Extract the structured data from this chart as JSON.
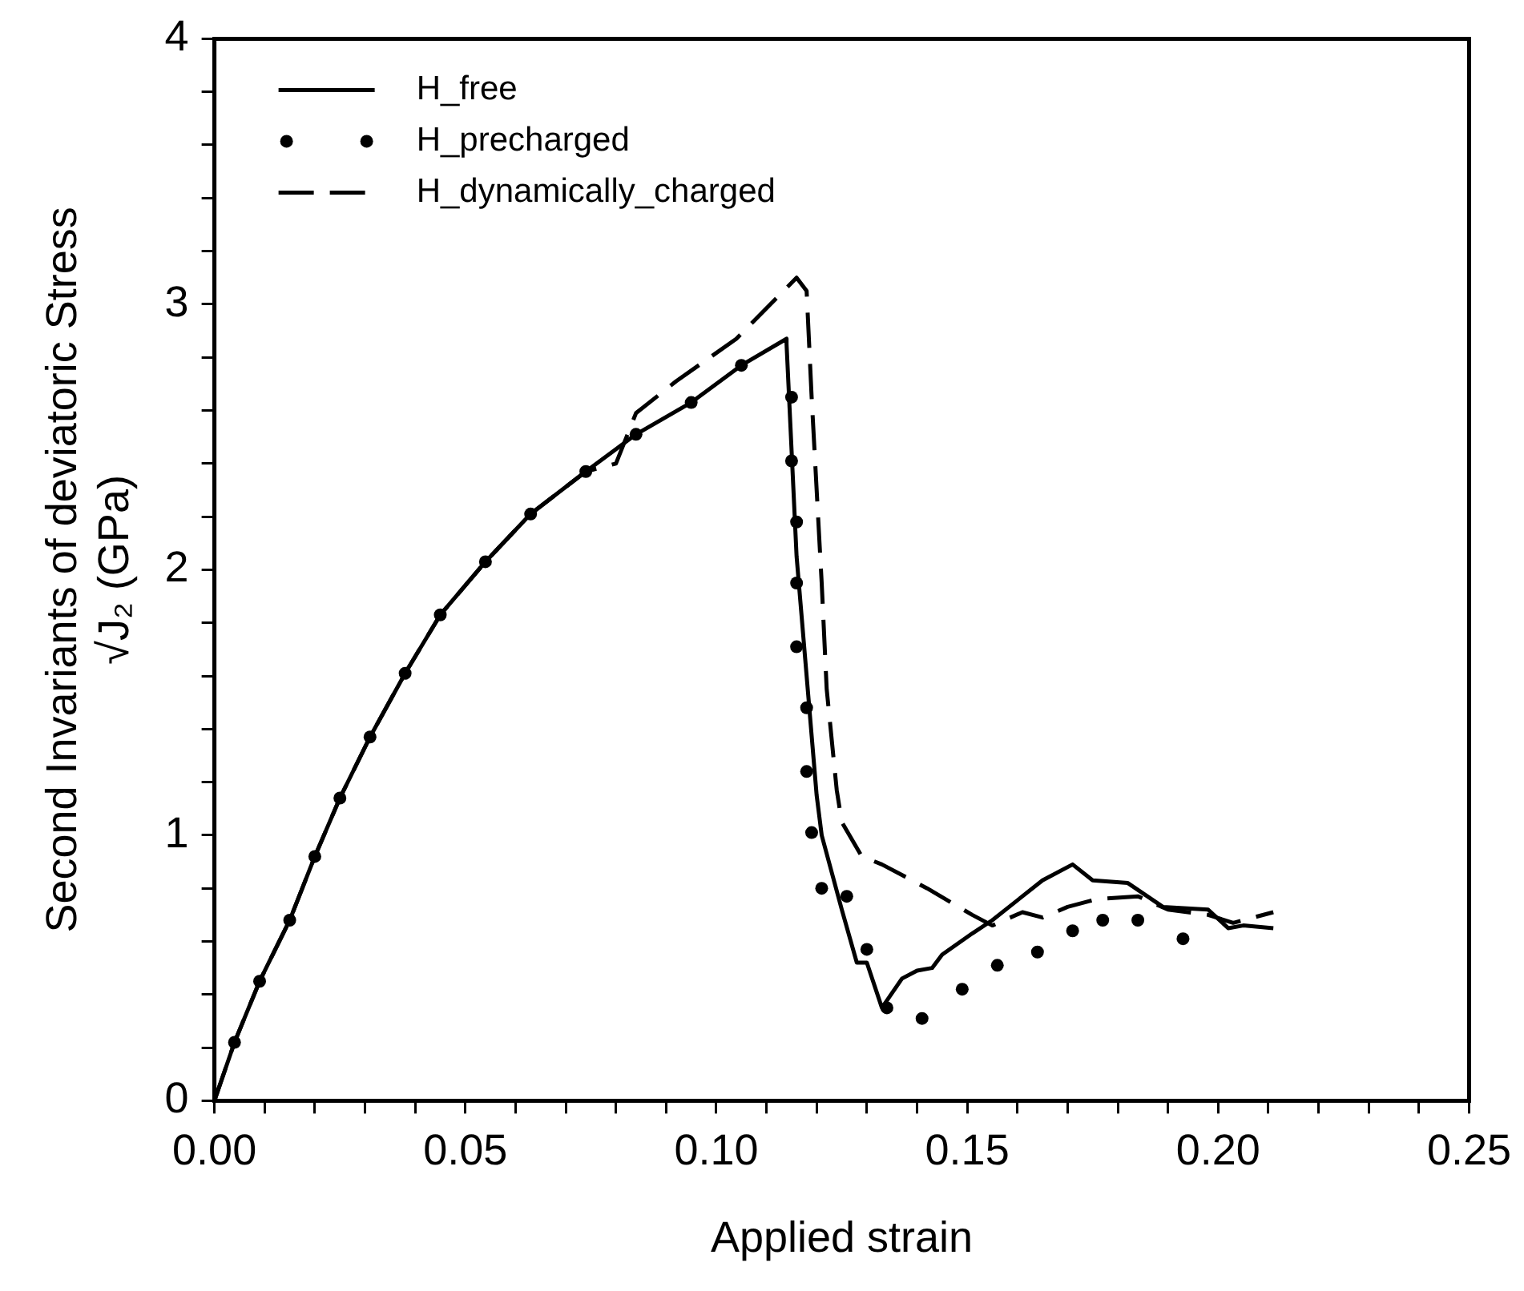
{
  "chart_data": {
    "type": "line",
    "xlabel": "Applied strain",
    "ylabel": "Second Invariants of deviatoric Stress\n√J₂ (GPa)",
    "xlim": [
      0,
      0.25
    ],
    "ylim": [
      0,
      4
    ],
    "xticks": [
      {
        "value": 0,
        "label": "0.00"
      },
      {
        "value": 0.01,
        "label": null
      },
      {
        "value": 0.02,
        "label": null
      },
      {
        "value": 0.03,
        "label": null
      },
      {
        "value": 0.04,
        "label": null
      },
      {
        "value": 0.05,
        "label": "0.05"
      },
      {
        "value": 0.06,
        "label": null
      },
      {
        "value": 0.07,
        "label": null
      },
      {
        "value": 0.08,
        "label": null
      },
      {
        "value": 0.09,
        "label": null
      },
      {
        "value": 0.1,
        "label": "0.10"
      },
      {
        "value": 0.11,
        "label": null
      },
      {
        "value": 0.12,
        "label": null
      },
      {
        "value": 0.13,
        "label": null
      },
      {
        "value": 0.14,
        "label": null
      },
      {
        "value": 0.15,
        "label": "0.15"
      },
      {
        "value": 0.16,
        "label": null
      },
      {
        "value": 0.17,
        "label": null
      },
      {
        "value": 0.18,
        "label": null
      },
      {
        "value": 0.19,
        "label": null
      },
      {
        "value": 0.2,
        "label": "0.20"
      },
      {
        "value": 0.21,
        "label": null
      },
      {
        "value": 0.22,
        "label": null
      },
      {
        "value": 0.23,
        "label": null
      },
      {
        "value": 0.24,
        "label": null
      },
      {
        "value": 0.25,
        "label": "0.25"
      }
    ],
    "yticks": [
      0,
      {
        "value": 0.2,
        "label": null
      },
      {
        "value": 0.4,
        "label": null
      },
      {
        "value": 0.6,
        "label": null
      },
      {
        "value": 0.8,
        "label": null
      },
      1,
      {
        "value": 1.2,
        "label": null
      },
      {
        "value": 1.4,
        "label": null
      },
      {
        "value": 1.6,
        "label": null
      },
      {
        "value": 1.8,
        "label": null
      },
      2,
      {
        "value": 2.2,
        "label": null
      },
      {
        "value": 2.4,
        "label": null
      },
      {
        "value": 2.6,
        "label": null
      },
      {
        "value": 2.8,
        "label": null
      },
      3,
      {
        "value": 3.2,
        "label": null
      },
      {
        "value": 3.4,
        "label": null
      },
      {
        "value": 3.6,
        "label": null
      },
      {
        "value": 3.8,
        "label": null
      },
      4
    ],
    "legend": "top left",
    "grid": false,
    "series": [
      {
        "name": "H_free",
        "type": "line",
        "line_style": "solid",
        "color": "#000000",
        "x": [
          0,
          0.004,
          0.009,
          0.015,
          0.02,
          0.025,
          0.031,
          0.038,
          0.045,
          0.054,
          0.063,
          0.074,
          0.084,
          0.095,
          0.105,
          0.114,
          0.114,
          0.116,
          0.12,
          0.121,
          0.125,
          0.128,
          0.13,
          0.133,
          0.137,
          0.14,
          0.143,
          0.145,
          0.151,
          0.155,
          0.159,
          0.165,
          0.171,
          0.175,
          0.182,
          0.189,
          0.198,
          0.202,
          0.205,
          0.211
        ],
        "values": [
          0,
          0.22,
          0.45,
          0.68,
          0.92,
          1.14,
          1.37,
          1.61,
          1.83,
          2.03,
          2.21,
          2.37,
          2.51,
          2.63,
          2.77,
          2.87,
          2.85,
          2.05,
          1.15,
          1.0,
          0.72,
          0.52,
          0.52,
          0.35,
          0.46,
          0.49,
          0.5,
          0.55,
          0.63,
          0.68,
          0.74,
          0.83,
          0.89,
          0.83,
          0.82,
          0.73,
          0.72,
          0.65,
          0.66,
          0.65
        ]
      },
      {
        "name": "H_precharged",
        "type": "scatter",
        "marker": "circle",
        "color": "#000000",
        "x": [
          0.004,
          0.009,
          0.015,
          0.02,
          0.025,
          0.031,
          0.038,
          0.045,
          0.054,
          0.063,
          0.074,
          0.084,
          0.095,
          0.105,
          0.115,
          0.115,
          0.116,
          0.116,
          0.116,
          0.118,
          0.118,
          0.119,
          0.121,
          0.126,
          0.13,
          0.134,
          0.141,
          0.149,
          0.156,
          0.164,
          0.171,
          0.177,
          0.184,
          0.193
        ],
        "values": [
          0.22,
          0.45,
          0.68,
          0.92,
          1.14,
          1.37,
          1.61,
          1.83,
          2.03,
          2.21,
          2.37,
          2.51,
          2.63,
          2.77,
          2.65,
          2.41,
          2.18,
          1.95,
          1.71,
          1.48,
          1.24,
          1.01,
          0.8,
          0.77,
          0.57,
          0.35,
          0.31,
          0.42,
          0.51,
          0.56,
          0.64,
          0.68,
          0.68,
          0.61
        ]
      },
      {
        "name": "H_dynamically_charged",
        "type": "line",
        "line_style": "dashed",
        "color": "#000000",
        "x": [
          0,
          0.004,
          0.009,
          0.015,
          0.02,
          0.025,
          0.031,
          0.038,
          0.045,
          0.054,
          0.063,
          0.074,
          0.08,
          0.084,
          0.092,
          0.104,
          0.116,
          0.118,
          0.119,
          0.121,
          0.122,
          0.124,
          0.125,
          0.129,
          0.133,
          0.142,
          0.151,
          0.155,
          0.161,
          0.165,
          0.17,
          0.176,
          0.184,
          0.19,
          0.198,
          0.203,
          0.211
        ],
        "values": [
          0,
          0.22,
          0.45,
          0.68,
          0.92,
          1.14,
          1.37,
          1.61,
          1.83,
          2.03,
          2.21,
          2.37,
          2.4,
          2.59,
          2.71,
          2.87,
          3.1,
          3.05,
          2.65,
          1.95,
          1.55,
          1.17,
          1.05,
          0.92,
          0.89,
          0.8,
          0.7,
          0.66,
          0.71,
          0.69,
          0.73,
          0.76,
          0.77,
          0.72,
          0.7,
          0.67,
          0.71
        ]
      }
    ]
  }
}
